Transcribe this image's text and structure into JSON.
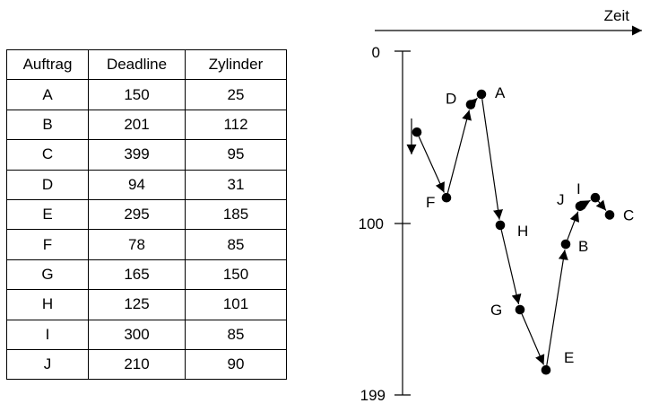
{
  "table": {
    "headers": [
      "Auftrag",
      "Deadline",
      "Zylinder"
    ],
    "rows": [
      [
        "A",
        "150",
        "25"
      ],
      [
        "B",
        "201",
        "112"
      ],
      [
        "C",
        "399",
        "95"
      ],
      [
        "D",
        "94",
        "31"
      ],
      [
        "E",
        "295",
        "185"
      ],
      [
        "F",
        "78",
        "85"
      ],
      [
        "G",
        "165",
        "150"
      ],
      [
        "H",
        "125",
        "101"
      ],
      [
        "I",
        "300",
        "85"
      ],
      [
        "J",
        "210",
        "90"
      ]
    ]
  },
  "diagram": {
    "time_label": "Zeit",
    "y_ticks": [
      "0",
      "100",
      "199"
    ],
    "path": [
      {
        "label": "",
        "cylinder": 47
      },
      {
        "label": "F",
        "cylinder": 85
      },
      {
        "label": "D",
        "cylinder": 31
      },
      {
        "label": "A",
        "cylinder": 25
      },
      {
        "label": "H",
        "cylinder": 101
      },
      {
        "label": "G",
        "cylinder": 150
      },
      {
        "label": "E",
        "cylinder": 185
      },
      {
        "label": "B",
        "cylinder": 112
      },
      {
        "label": "J",
        "cylinder": 90
      },
      {
        "label": "I",
        "cylinder": 85
      },
      {
        "label": "C",
        "cylinder": 95
      }
    ]
  }
}
